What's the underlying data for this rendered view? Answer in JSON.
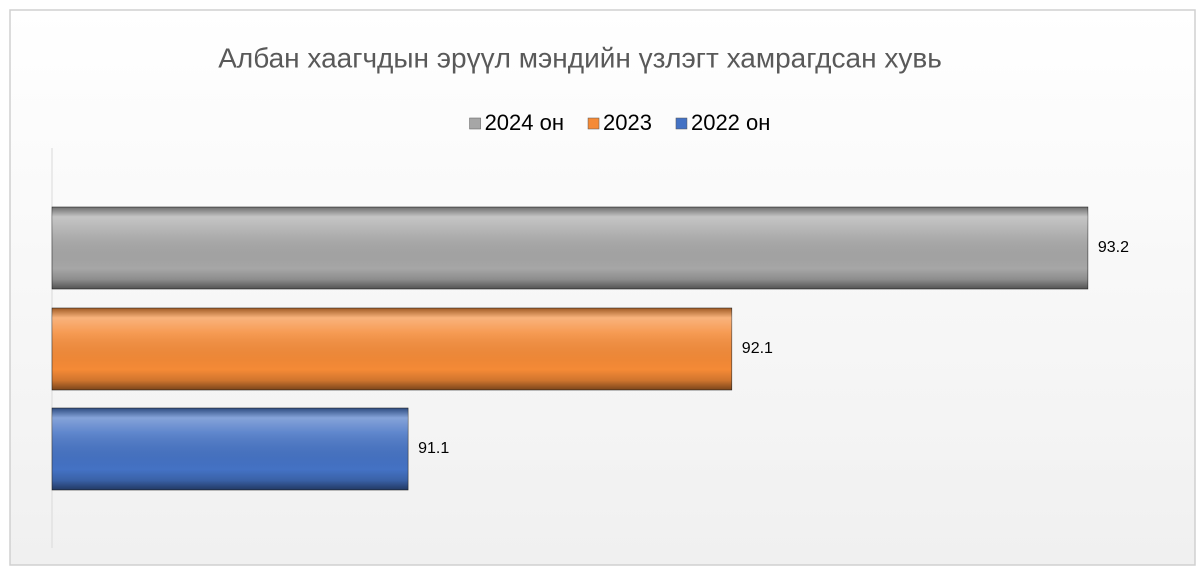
{
  "chart_data": {
    "type": "bar",
    "orientation": "horizontal",
    "title": "Албан хаагчдын эрүүл мэндийн үзлэгт хамрагдсан хувь",
    "categories": [
      null
    ],
    "series": [
      {
        "name": "2024 он",
        "color": "#a6a6a6",
        "values": [
          93.2
        ]
      },
      {
        "name": "2023",
        "color": "#f58a36",
        "values": [
          92.1
        ]
      },
      {
        "name": "2022 он",
        "color": "#4472c4",
        "values": [
          91.1
        ]
      }
    ],
    "xlim": [
      90,
      93.5
    ],
    "legend": "top"
  }
}
